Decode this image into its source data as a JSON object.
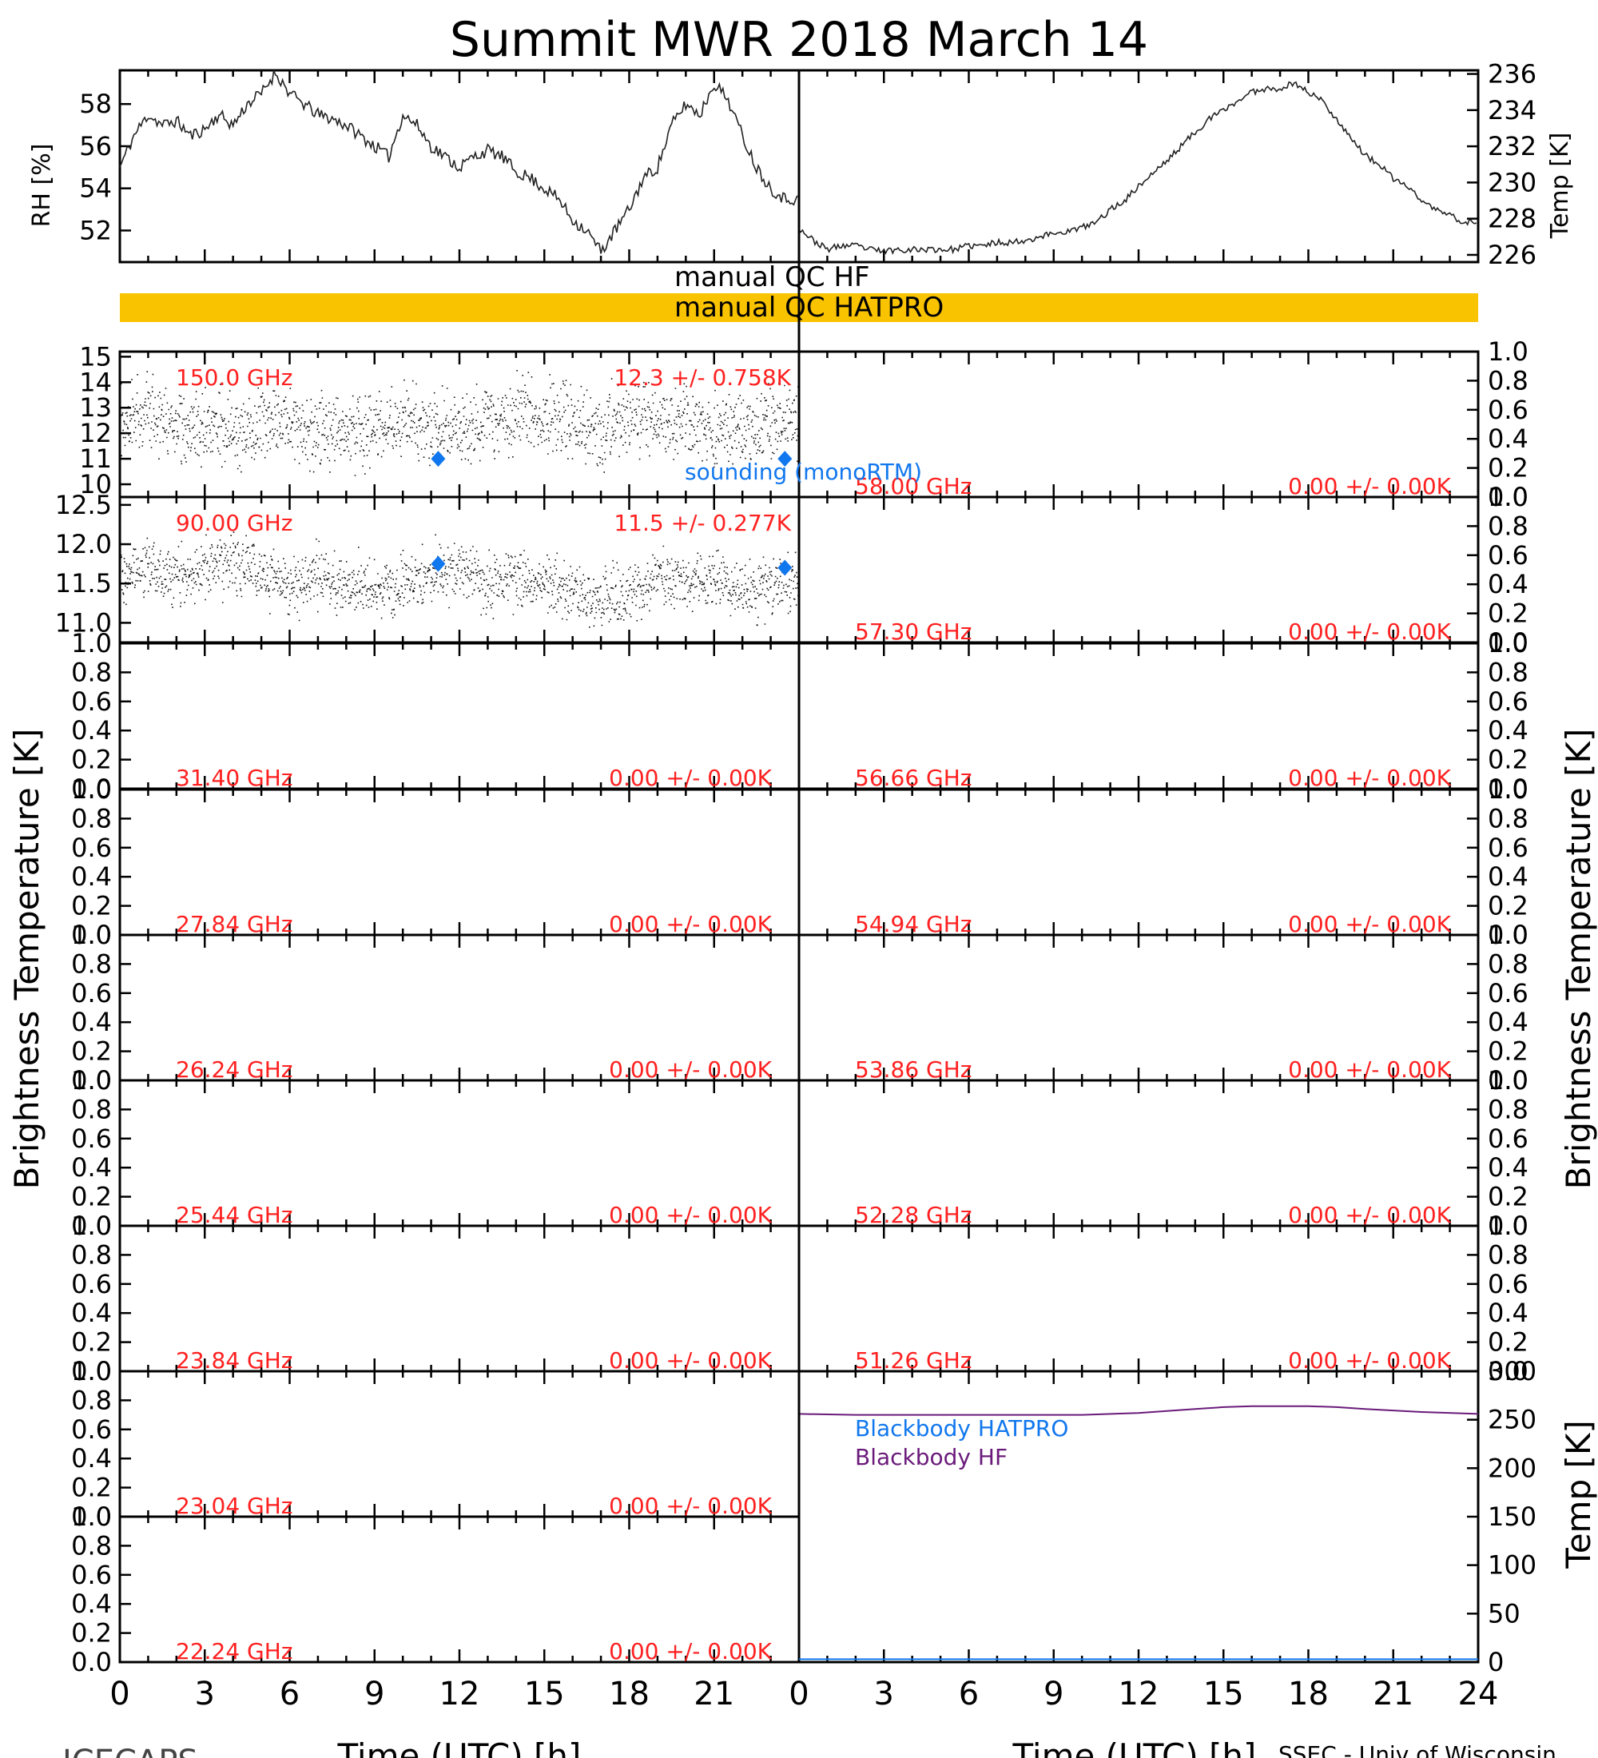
{
  "title": "Summit MWR 2018 March 14",
  "footer": {
    "left": "ICECAPS",
    "right": "SSEC - Univ of Wisconsin"
  },
  "xaxis": {
    "label": "Time (UTC) [h]",
    "ticks_left": [
      "0",
      "3",
      "6",
      "9",
      "12",
      "15",
      "18",
      "21"
    ],
    "ticks_right": [
      "0",
      "3",
      "6",
      "9",
      "12",
      "15",
      "18",
      "21",
      "24"
    ]
  },
  "ylabels": {
    "rh": "RH [%]",
    "temp": "Temp [K]",
    "tb": "Brightness Temperature [K]",
    "bb_temp": "Temp [K]"
  },
  "qc": {
    "hf": "manual QC HF",
    "hatpro": "manual QC HATPRO",
    "hatpro_color": "#f9c300"
  },
  "colors": {
    "label_red": "#ff2020",
    "sounding_blue": "#1177ee",
    "bb_hatpro": "#1177ee",
    "bb_hf": "#6a1a7a"
  },
  "chart_data": [
    {
      "type": "line",
      "panel": "rh",
      "xlim": [
        0,
        24
      ],
      "ylim": [
        50.5,
        59.6
      ],
      "yticks": [
        "52",
        "54",
        "56",
        "58"
      ],
      "series": [
        {
          "x": [
            0,
            0.5,
            1,
            1.5,
            2,
            2.5,
            3,
            3.5,
            4,
            4.5,
            5,
            5.5,
            6,
            6.5,
            7,
            7.5,
            8,
            8.5,
            9,
            9.5,
            10,
            10.5,
            11,
            11.5,
            12,
            12.5,
            13,
            13.5,
            14,
            14.5,
            15,
            15.5,
            16,
            16.5,
            17,
            17.5,
            18,
            18.5,
            19,
            19.5,
            20,
            20.5,
            21,
            21.5,
            22,
            22.5,
            23,
            23.5,
            24
          ],
          "values": [
            55.0,
            56.5,
            57.5,
            57.0,
            57.2,
            56.5,
            56.8,
            57.5,
            57.0,
            58.0,
            58.5,
            59.5,
            58.5,
            58.0,
            57.5,
            57.3,
            57.0,
            56.5,
            56.0,
            55.5,
            57.5,
            57.0,
            56.0,
            55.5,
            55.0,
            55.5,
            55.8,
            55.5,
            54.8,
            54.5,
            54.0,
            53.5,
            52.5,
            52.0,
            51.0,
            52.0,
            53.0,
            54.5,
            55.0,
            57.0,
            58.0,
            57.5,
            59.0,
            58.2,
            56.5,
            55.0,
            54.0,
            53.5,
            53.5
          ]
        }
      ]
    },
    {
      "type": "line",
      "panel": "temp",
      "xlim": [
        0,
        24
      ],
      "ylim": [
        225.6,
        236.2
      ],
      "yticks": [
        "226",
        "228",
        "230",
        "232",
        "234",
        "236"
      ],
      "series": [
        {
          "x": [
            0,
            0.5,
            1,
            1.5,
            2,
            2.5,
            3,
            3.5,
            4,
            4.5,
            5,
            5.5,
            6,
            6.5,
            7,
            7.5,
            8,
            8.5,
            9,
            9.5,
            10,
            10.5,
            11,
            11.5,
            12,
            12.5,
            13,
            13.5,
            14,
            14.5,
            15,
            15.5,
            16,
            16.5,
            17,
            17.5,
            18,
            18.5,
            19,
            19.5,
            20,
            20.5,
            21,
            21.5,
            22,
            22.5,
            23,
            23.5,
            24
          ],
          "values": [
            227.5,
            226.8,
            226.3,
            226.5,
            226.5,
            226.3,
            226.2,
            226.3,
            226.3,
            226.3,
            226.3,
            226.3,
            226.5,
            226.5,
            226.7,
            226.7,
            226.8,
            227.0,
            227.2,
            227.3,
            227.5,
            227.8,
            228.5,
            229.0,
            229.8,
            230.5,
            231.2,
            232.0,
            232.8,
            233.5,
            234.0,
            234.5,
            235.0,
            235.2,
            235.2,
            235.5,
            235.0,
            234.5,
            233.5,
            232.5,
            231.5,
            231.0,
            230.2,
            229.8,
            229.0,
            228.5,
            228.2,
            227.8,
            227.8
          ]
        }
      ]
    },
    {
      "type": "scatter",
      "panel": "tb-left-1",
      "channel": "150.0 GHz",
      "stats": "12.3 +/- 0.758K",
      "xlim": [
        0,
        24
      ],
      "ylim": [
        9.5,
        15.2
      ],
      "yticks": [
        "10",
        "11",
        "12",
        "13",
        "14",
        "15"
      ],
      "series": [
        {
          "x": [
            0,
            1,
            2,
            3,
            4,
            5,
            6,
            7,
            8,
            9,
            10,
            11,
            12,
            13,
            14,
            15,
            16,
            17,
            18,
            19,
            20,
            21,
            22,
            23,
            24
          ],
          "values": [
            12.5,
            12.8,
            12.3,
            12.2,
            12.0,
            12.4,
            12.5,
            12.2,
            12.0,
            12.3,
            12.6,
            12.1,
            12.2,
            12.5,
            12.8,
            12.7,
            12.5,
            12.3,
            12.6,
            12.4,
            12.5,
            12.2,
            12.3,
            12.4,
            12.6
          ]
        },
        {
          "name": "sounding (monoRTM)",
          "x": [
            11.25,
            23.5
          ],
          "values": [
            11.0,
            11.0
          ]
        }
      ]
    },
    {
      "type": "scatter",
      "panel": "tb-left-2",
      "channel": "90.00 GHz",
      "stats": "11.5 +/- 0.277K",
      "xlim": [
        0,
        24
      ],
      "ylim": [
        10.75,
        12.6
      ],
      "yticks": [
        "11.0",
        "11.5",
        "12.0",
        "12.5"
      ],
      "series": [
        {
          "x": [
            0,
            1,
            2,
            3,
            4,
            5,
            6,
            7,
            8,
            9,
            10,
            11,
            12,
            13,
            14,
            15,
            16,
            17,
            18,
            19,
            20,
            21,
            22,
            23,
            24
          ],
          "values": [
            11.6,
            11.7,
            11.6,
            11.7,
            11.8,
            11.6,
            11.5,
            11.6,
            11.5,
            11.4,
            11.5,
            11.6,
            11.7,
            11.5,
            11.6,
            11.5,
            11.4,
            11.3,
            11.4,
            11.6,
            11.5,
            11.6,
            11.4,
            11.5,
            11.6
          ]
        },
        {
          "name": "sounding (monoRTM)",
          "x": [
            11.25,
            23.5
          ],
          "values": [
            11.75,
            11.7
          ]
        }
      ]
    },
    {
      "type": "scatter",
      "panel": "tb-left-3",
      "channel": "31.40 GHz",
      "stats": "0.00 +/- 0.00K",
      "ylim": [
        0,
        1
      ]
    },
    {
      "type": "scatter",
      "panel": "tb-left-4",
      "channel": "27.84 GHz",
      "stats": "0.00 +/- 0.00K",
      "ylim": [
        0,
        1
      ]
    },
    {
      "type": "scatter",
      "panel": "tb-left-5",
      "channel": "26.24 GHz",
      "stats": "0.00 +/- 0.00K",
      "ylim": [
        0,
        1
      ]
    },
    {
      "type": "scatter",
      "panel": "tb-left-6",
      "channel": "25.44 GHz",
      "stats": "0.00 +/- 0.00K",
      "ylim": [
        0,
        1
      ]
    },
    {
      "type": "scatter",
      "panel": "tb-left-7",
      "channel": "23.84 GHz",
      "stats": "0.00 +/- 0.00K",
      "ylim": [
        0,
        1
      ]
    },
    {
      "type": "scatter",
      "panel": "tb-left-8",
      "channel": "23.04 GHz",
      "stats": "0.00 +/- 0.00K",
      "ylim": [
        0,
        1
      ]
    },
    {
      "type": "scatter",
      "panel": "tb-left-9",
      "channel": "22.24 GHz",
      "stats": "0.00 +/- 0.00K",
      "ylim": [
        0,
        1
      ]
    },
    {
      "type": "scatter",
      "panel": "tb-right-1",
      "channel": "58.00 GHz",
      "stats": "0.00 +/- 0.00K",
      "ylim": [
        0,
        1
      ]
    },
    {
      "type": "scatter",
      "panel": "tb-right-2",
      "channel": "57.30 GHz",
      "stats": "0.00 +/- 0.00K",
      "ylim": [
        0,
        1
      ]
    },
    {
      "type": "scatter",
      "panel": "tb-right-3",
      "channel": "56.66 GHz",
      "stats": "0.00 +/- 0.00K",
      "ylim": [
        0,
        1
      ]
    },
    {
      "type": "scatter",
      "panel": "tb-right-4",
      "channel": "54.94 GHz",
      "stats": "0.00 +/- 0.00K",
      "ylim": [
        0,
        1
      ]
    },
    {
      "type": "scatter",
      "panel": "tb-right-5",
      "channel": "53.86 GHz",
      "stats": "0.00 +/- 0.00K",
      "ylim": [
        0,
        1
      ]
    },
    {
      "type": "scatter",
      "panel": "tb-right-6",
      "channel": "52.28 GHz",
      "stats": "0.00 +/- 0.00K",
      "ylim": [
        0,
        1
      ]
    },
    {
      "type": "scatter",
      "panel": "tb-right-7",
      "channel": "51.26 GHz",
      "stats": "0.00 +/- 0.00K",
      "ylim": [
        0,
        1
      ]
    },
    {
      "type": "line",
      "panel": "blackbody",
      "xlim": [
        0,
        24
      ],
      "ylim": [
        0,
        300
      ],
      "yticks": [
        "0",
        "50",
        "100",
        "150",
        "200",
        "250",
        "300"
      ],
      "series": [
        {
          "name": "Blackbody HATPRO",
          "x": [
            0,
            24
          ],
          "values": [
            0.5,
            0.5
          ]
        },
        {
          "name": "Blackbody HF",
          "x": [
            0,
            2,
            4,
            6,
            8,
            10,
            12,
            14,
            15,
            16,
            17,
            18,
            19,
            20,
            22,
            24
          ],
          "values": [
            256,
            255,
            255,
            255,
            255,
            255,
            257,
            261,
            263,
            264,
            264,
            264,
            263,
            261,
            258,
            256
          ]
        }
      ]
    }
  ]
}
